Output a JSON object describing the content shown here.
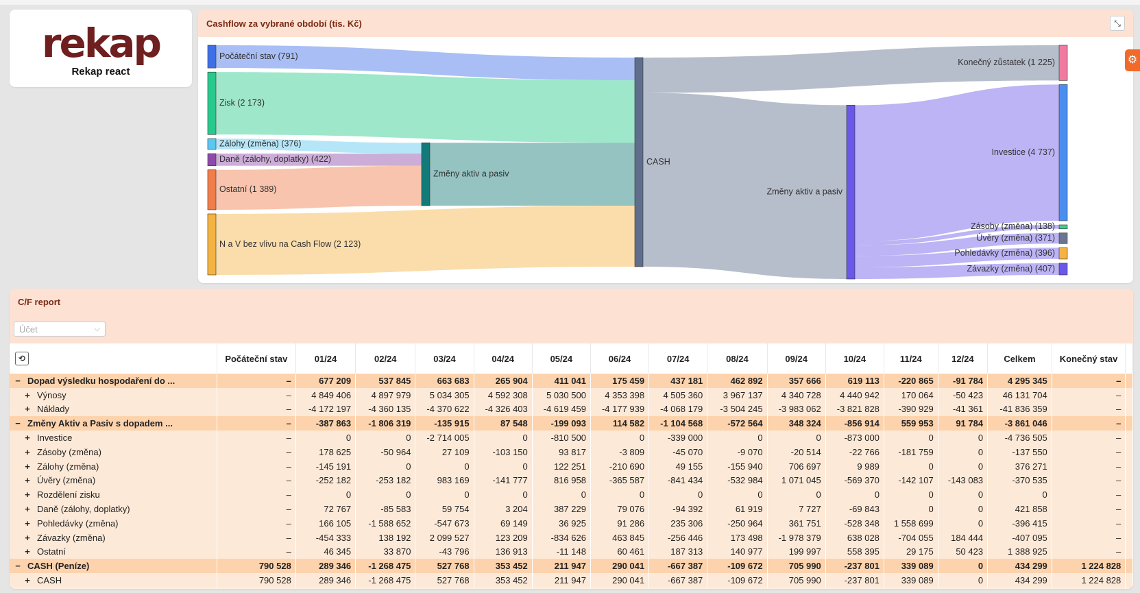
{
  "logo": {
    "word": "rekap",
    "subtitle": "Rekap react"
  },
  "cashflow": {
    "title": "Cashflow za vybrané období (tis. Kč)",
    "expand_icon": "expand-icon",
    "settings_icon": "gear-icon",
    "sources": [
      {
        "label": "Počáteční stav (791)",
        "value": 791,
        "color": "#3d6fe8"
      },
      {
        "label": "Zisk (2 173)",
        "value": 2173,
        "color": "#28c98c"
      },
      {
        "label": "Zálohy (změna) (376)",
        "value": 376,
        "color": "#5ac8f0"
      },
      {
        "label": "Daně (zálohy, doplatky) (422)",
        "value": 422,
        "color": "#8e4aa8"
      },
      {
        "label": "Ostatní (1 389)",
        "value": 1389,
        "color": "#f07d4a"
      },
      {
        "label": "N a V bez vlivu na Cash Flow (2 123)",
        "value": 2123,
        "color": "#f5b342"
      }
    ],
    "nodes": {
      "zmeny_in": {
        "label": "Změny aktiv a pasiv",
        "color": "#127a78"
      },
      "cash": {
        "label": "CASH",
        "color": "#5f6e8c"
      },
      "zmeny_out": {
        "label": "Změny aktiv a pasiv",
        "color": "#6a58e8"
      }
    },
    "targets": [
      {
        "label": "Konečný zůstatek (1 225)",
        "value": 1225,
        "color": "#f07aa0"
      },
      {
        "label": "Investice (4 737)",
        "value": 4737,
        "color": "#4a8ef0"
      },
      {
        "label": "Zásoby (změna) (138)",
        "value": 138,
        "color": "#3ecf88"
      },
      {
        "label": "Úvěry (změna) (371)",
        "value": 371,
        "color": "#6a7690"
      },
      {
        "label": "Pohledávky (změna) (396)",
        "value": 396,
        "color": "#f5b342"
      },
      {
        "label": "Závazky (změna) (407)",
        "value": 407,
        "color": "#6a58e8"
      }
    ]
  },
  "report": {
    "title": "C/F report",
    "account_placeholder": "Účet",
    "reload_icon": "refresh-icon",
    "columns": [
      "Počáteční stav",
      "01/24",
      "02/24",
      "03/24",
      "04/24",
      "05/24",
      "06/24",
      "07/24",
      "08/24",
      "09/24",
      "10/24",
      "11/24",
      "12/24",
      "Celkem",
      "Konečný stav"
    ],
    "rows": [
      {
        "type": "group",
        "toggle": "−",
        "label": "Dopad výsledku hospodaření do ...",
        "cells": [
          "–",
          "677 209",
          "537 845",
          "663 683",
          "265 904",
          "411 041",
          "175 459",
          "437 181",
          "462 892",
          "357 666",
          "619 113",
          "-220 865",
          "-91 784",
          "4 295 345",
          "–"
        ]
      },
      {
        "type": "child",
        "toggle": "+",
        "label": "Výnosy",
        "cells": [
          "–",
          "4 849 406",
          "4 897 979",
          "5 034 305",
          "4 592 308",
          "5 030 500",
          "4 353 398",
          "4 505 360",
          "3 967 137",
          "4 340 728",
          "4 440 942",
          "170 064",
          "-50 423",
          "46 131 704",
          "–"
        ]
      },
      {
        "type": "child",
        "toggle": "+",
        "label": "Náklady",
        "cells": [
          "–",
          "-4 172 197",
          "-4 360 135",
          "-4 370 622",
          "-4 326 403",
          "-4 619 459",
          "-4 177 939",
          "-4 068 179",
          "-3 504 245",
          "-3 983 062",
          "-3 821 828",
          "-390 929",
          "-41 361",
          "-41 836 359",
          "–"
        ]
      },
      {
        "type": "group",
        "toggle": "−",
        "label": "Změny Aktiv a Pasiv s dopadem ...",
        "cells": [
          "–",
          "-387 863",
          "-1 806 319",
          "-135 915",
          "87 548",
          "-199 093",
          "114 582",
          "-1 104 568",
          "-572 564",
          "348 324",
          "-856 914",
          "559 953",
          "91 784",
          "-3 861 046",
          "–"
        ]
      },
      {
        "type": "child",
        "toggle": "+",
        "label": "Investice",
        "cells": [
          "–",
          "0",
          "0",
          "-2 714 005",
          "0",
          "-810 500",
          "0",
          "-339 000",
          "0",
          "0",
          "-873 000",
          "0",
          "0",
          "-4 736 505",
          "–"
        ]
      },
      {
        "type": "child",
        "toggle": "+",
        "label": "Zásoby (změna)",
        "cells": [
          "–",
          "178 625",
          "-50 964",
          "27 109",
          "-103 150",
          "93 817",
          "-3 809",
          "-45 070",
          "-9 070",
          "-20 514",
          "-22 766",
          "-181 759",
          "0",
          "-137 550",
          "–"
        ]
      },
      {
        "type": "child",
        "toggle": "+",
        "label": "Zálohy (změna)",
        "cells": [
          "–",
          "-145 191",
          "0",
          "0",
          "0",
          "122 251",
          "-210 690",
          "49 155",
          "-155 940",
          "706 697",
          "9 989",
          "0",
          "0",
          "376 271",
          "–"
        ]
      },
      {
        "type": "child",
        "toggle": "+",
        "label": "Úvěry (změna)",
        "cells": [
          "–",
          "-252 182",
          "-253 182",
          "983 169",
          "-141 777",
          "816 958",
          "-365 587",
          "-841 434",
          "-532 984",
          "1 071 045",
          "-569 370",
          "-142 107",
          "-143 083",
          "-370 535",
          "–"
        ]
      },
      {
        "type": "child",
        "toggle": "+",
        "label": "Rozdělení zisku",
        "cells": [
          "–",
          "0",
          "0",
          "0",
          "0",
          "0",
          "0",
          "0",
          "0",
          "0",
          "0",
          "0",
          "0",
          "0",
          "–"
        ]
      },
      {
        "type": "child",
        "toggle": "+",
        "label": "Daně (zálohy, doplatky)",
        "cells": [
          "–",
          "72 767",
          "-85 583",
          "59 754",
          "3 204",
          "387 229",
          "79 076",
          "-94 392",
          "61 919",
          "7 727",
          "-69 843",
          "0",
          "0",
          "421 858",
          "–"
        ]
      },
      {
        "type": "child",
        "toggle": "+",
        "label": "Pohledávky (změna)",
        "cells": [
          "–",
          "166 105",
          "-1 588 652",
          "-547 673",
          "69 149",
          "36 925",
          "91 286",
          "235 306",
          "-250 964",
          "361 751",
          "-528 348",
          "1 558 699",
          "0",
          "-396 415",
          "–"
        ]
      },
      {
        "type": "child",
        "toggle": "+",
        "label": "Závazky (změna)",
        "cells": [
          "–",
          "-454 333",
          "138 192",
          "2 099 527",
          "123 209",
          "-834 626",
          "463 845",
          "-256 446",
          "173 498",
          "-1 978 379",
          "638 028",
          "-704 055",
          "184 444",
          "-407 095",
          "–"
        ]
      },
      {
        "type": "child",
        "toggle": "+",
        "label": "Ostatní",
        "cells": [
          "–",
          "46 345",
          "33 870",
          "-43 796",
          "136 913",
          "-11 148",
          "60 461",
          "187 313",
          "140 977",
          "199 997",
          "558 395",
          "29 175",
          "50 423",
          "1 388 925",
          "–"
        ]
      },
      {
        "type": "group",
        "toggle": "−",
        "label": "CASH (Peníze)",
        "cells": [
          "790 528",
          "289 346",
          "-1 268 475",
          "527 768",
          "353 452",
          "211 947",
          "290 041",
          "-667 387",
          "-109 672",
          "705 990",
          "-237 801",
          "339 089",
          "0",
          "434 299",
          "1 224 828"
        ]
      },
      {
        "type": "child",
        "toggle": "+",
        "label": "CASH",
        "cells": [
          "790 528",
          "289 346",
          "-1 268 475",
          "527 768",
          "353 452",
          "211 947",
          "290 041",
          "-667 387",
          "-109 672",
          "705 990",
          "-237 801",
          "339 089",
          "0",
          "434 299",
          "1 224 828"
        ]
      }
    ]
  }
}
